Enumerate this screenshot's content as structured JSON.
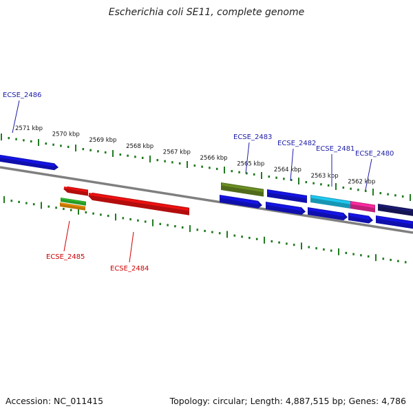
{
  "title": "Escherichia coli SE11, complete genome",
  "accession_text": "Accession: NC_011415",
  "summary_text": "Topology: circular; Length: 4,887,515 bp; Genes: 4,786",
  "colors": {
    "backbone": "#7f7f7f",
    "tick": "#1f7a1f",
    "label_top": "#1a1aa6",
    "label_bottom": "#cc0000",
    "blue": "#1414e6",
    "red": "#ee1111",
    "olive": "#6b8e23",
    "cyan": "#1ec8f0",
    "pink": "#ff2aa0",
    "navy": "#1a1a70",
    "green": "#33cc33",
    "orange": "#ff9900"
  },
  "scale_labels": [
    "2571 kbp",
    "2570 kbp",
    "2569 kbp",
    "2568 kbp",
    "2567 kbp",
    "2566 kbp",
    "2565 kbp",
    "2564 kbp",
    "2563 kbp",
    "2562 kbp"
  ],
  "gene_labels": {
    "top": [
      "ECSE_2486",
      "ECSE_2483",
      "ECSE_2482",
      "ECSE_2481",
      "ECSE_2480"
    ],
    "bottom": [
      "ECSE_2485",
      "ECSE_2484"
    ]
  }
}
